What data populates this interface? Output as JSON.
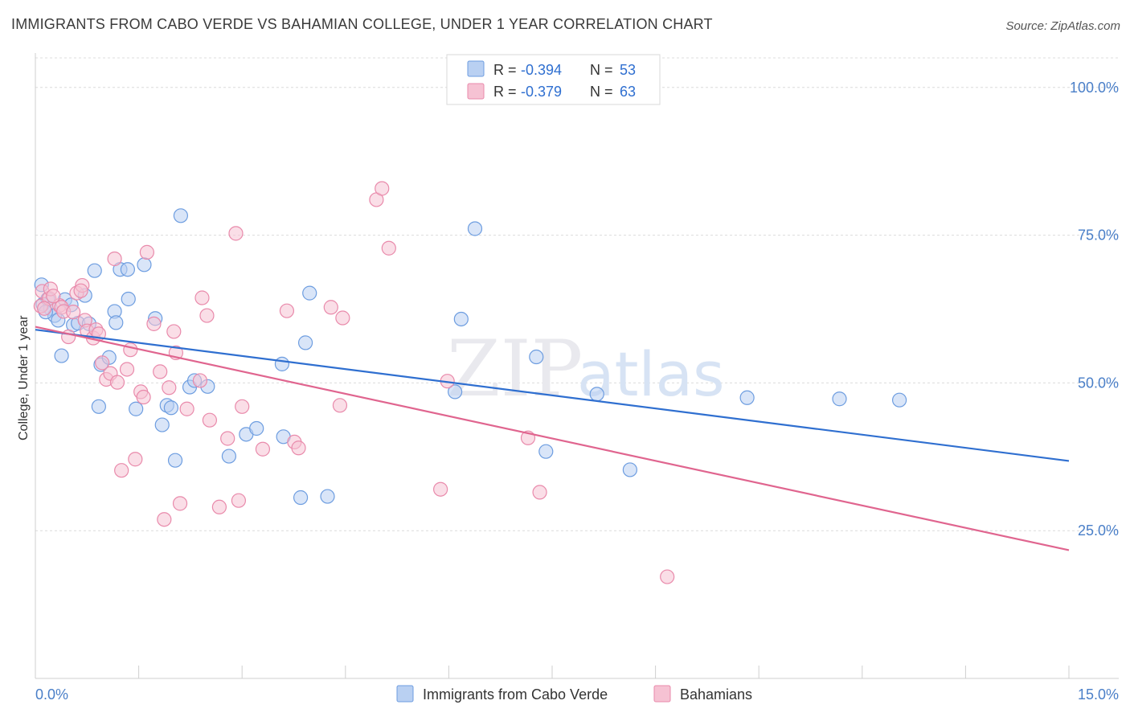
{
  "title": "IMMIGRANTS FROM CABO VERDE VS BAHAMIAN COLLEGE, UNDER 1 YEAR CORRELATION CHART",
  "source": "Source: ZipAtlas.com",
  "watermark": {
    "zip": "ZIP",
    "atlas": "atlas"
  },
  "chart_data": {
    "type": "scatter",
    "title": "IMMIGRANTS FROM CABO VERDE VS BAHAMIAN COLLEGE, UNDER 1 YEAR CORRELATION CHART",
    "xlabel": "",
    "ylabel": "College, Under 1 year",
    "xlim": [
      0,
      15
    ],
    "ylim": [
      0,
      105
    ],
    "x_tick_labels": [
      "0.0%",
      "15.0%"
    ],
    "y_ticks": [
      25,
      50,
      75,
      100
    ],
    "y_tick_labels": [
      "25.0%",
      "50.0%",
      "75.0%",
      "100.0%"
    ],
    "grid": true,
    "legend": {
      "position": "top-center",
      "entries": [
        {
          "r_label": "R =",
          "r_value": "-0.394",
          "n_label": "N =",
          "n_value": "53"
        },
        {
          "r_label": "R =",
          "r_value": "-0.379",
          "n_label": "N =",
          "n_value": "63"
        }
      ]
    },
    "series": [
      {
        "name": "Immigrants from Cabo Verde",
        "color": "#6d9de0",
        "fill": "#b9d0f2",
        "trend": {
          "x": [
            0,
            15
          ],
          "y": [
            59.0,
            36.8
          ],
          "color": "#2f6fd0"
        },
        "points": [
          [
            0.09,
            66.6
          ],
          [
            0.11,
            63.3
          ],
          [
            0.18,
            64.2
          ],
          [
            0.22,
            62.6
          ],
          [
            0.28,
            61.4
          ],
          [
            0.33,
            60.6
          ],
          [
            0.38,
            54.6
          ],
          [
            0.43,
            64.1
          ],
          [
            0.52,
            63.2
          ],
          [
            0.55,
            59.8
          ],
          [
            0.62,
            60.1
          ],
          [
            0.72,
            64.8
          ],
          [
            0.78,
            60.0
          ],
          [
            0.86,
            69.0
          ],
          [
            0.92,
            46.0
          ],
          [
            0.95,
            53.1
          ],
          [
            1.07,
            54.3
          ],
          [
            1.15,
            62.1
          ],
          [
            1.17,
            60.2
          ],
          [
            1.23,
            69.2
          ],
          [
            1.34,
            69.2
          ],
          [
            1.35,
            64.2
          ],
          [
            1.46,
            45.6
          ],
          [
            1.58,
            70.0
          ],
          [
            1.74,
            60.9
          ],
          [
            1.84,
            42.9
          ],
          [
            1.91,
            46.2
          ],
          [
            1.97,
            45.8
          ],
          [
            2.03,
            36.9
          ],
          [
            2.11,
            78.3
          ],
          [
            2.24,
            49.3
          ],
          [
            2.31,
            50.4
          ],
          [
            2.5,
            49.4
          ],
          [
            2.81,
            37.6
          ],
          [
            3.06,
            41.3
          ],
          [
            3.21,
            42.3
          ],
          [
            3.58,
            53.2
          ],
          [
            3.6,
            40.9
          ],
          [
            3.85,
            30.6
          ],
          [
            3.92,
            56.8
          ],
          [
            3.98,
            65.2
          ],
          [
            4.24,
            30.8
          ],
          [
            6.09,
            48.5
          ],
          [
            6.18,
            60.8
          ],
          [
            6.38,
            76.1
          ],
          [
            7.27,
            54.4
          ],
          [
            7.41,
            38.4
          ],
          [
            8.15,
            48.1
          ],
          [
            8.63,
            35.3
          ],
          [
            10.33,
            47.5
          ],
          [
            11.67,
            47.3
          ],
          [
            12.54,
            47.1
          ],
          [
            0.15,
            62.0
          ]
        ]
      },
      {
        "name": "Bahamians",
        "color": "#e98aab",
        "fill": "#f6c2d3",
        "trend": {
          "x": [
            0,
            15
          ],
          "y": [
            59.5,
            21.7
          ],
          "color": "#e0658f"
        },
        "points": [
          [
            0.08,
            63.0
          ],
          [
            0.1,
            65.5
          ],
          [
            0.2,
            64.3
          ],
          [
            0.22,
            65.9
          ],
          [
            0.35,
            63.1
          ],
          [
            0.38,
            62.8
          ],
          [
            0.41,
            62.1
          ],
          [
            0.48,
            57.8
          ],
          [
            0.55,
            62.0
          ],
          [
            0.6,
            65.2
          ],
          [
            0.68,
            66.5
          ],
          [
            0.72,
            60.6
          ],
          [
            0.75,
            58.8
          ],
          [
            0.84,
            57.6
          ],
          [
            0.88,
            59.0
          ],
          [
            0.92,
            58.3
          ],
          [
            0.97,
            53.4
          ],
          [
            1.03,
            50.6
          ],
          [
            1.09,
            51.6
          ],
          [
            1.15,
            71.0
          ],
          [
            1.19,
            50.1
          ],
          [
            1.25,
            35.2
          ],
          [
            1.33,
            52.3
          ],
          [
            1.38,
            55.6
          ],
          [
            1.45,
            37.1
          ],
          [
            1.53,
            48.5
          ],
          [
            1.57,
            47.6
          ],
          [
            1.62,
            72.1
          ],
          [
            1.72,
            60.0
          ],
          [
            1.81,
            51.9
          ],
          [
            1.87,
            26.9
          ],
          [
            1.94,
            49.2
          ],
          [
            2.01,
            58.7
          ],
          [
            2.04,
            55.1
          ],
          [
            2.1,
            29.6
          ],
          [
            2.2,
            45.6
          ],
          [
            2.39,
            50.4
          ],
          [
            2.42,
            64.4
          ],
          [
            2.49,
            61.4
          ],
          [
            2.53,
            43.7
          ],
          [
            2.67,
            29.0
          ],
          [
            2.79,
            40.6
          ],
          [
            2.91,
            75.3
          ],
          [
            2.95,
            30.1
          ],
          [
            3.0,
            46.0
          ],
          [
            3.3,
            38.8
          ],
          [
            3.65,
            62.2
          ],
          [
            3.76,
            40.0
          ],
          [
            3.82,
            39.0
          ],
          [
            4.29,
            62.8
          ],
          [
            4.42,
            46.2
          ],
          [
            4.46,
            61.0
          ],
          [
            4.95,
            81.0
          ],
          [
            5.03,
            82.9
          ],
          [
            5.13,
            72.8
          ],
          [
            5.88,
            32.0
          ],
          [
            5.98,
            50.3
          ],
          [
            7.15,
            40.7
          ],
          [
            7.32,
            31.5
          ],
          [
            9.17,
            17.2
          ],
          [
            0.13,
            62.6
          ],
          [
            0.26,
            64.7
          ],
          [
            0.66,
            65.6
          ]
        ]
      }
    ]
  },
  "bottom_legend": [
    {
      "label": "Immigrants from Cabo Verde"
    },
    {
      "label": "Bahamians"
    }
  ]
}
